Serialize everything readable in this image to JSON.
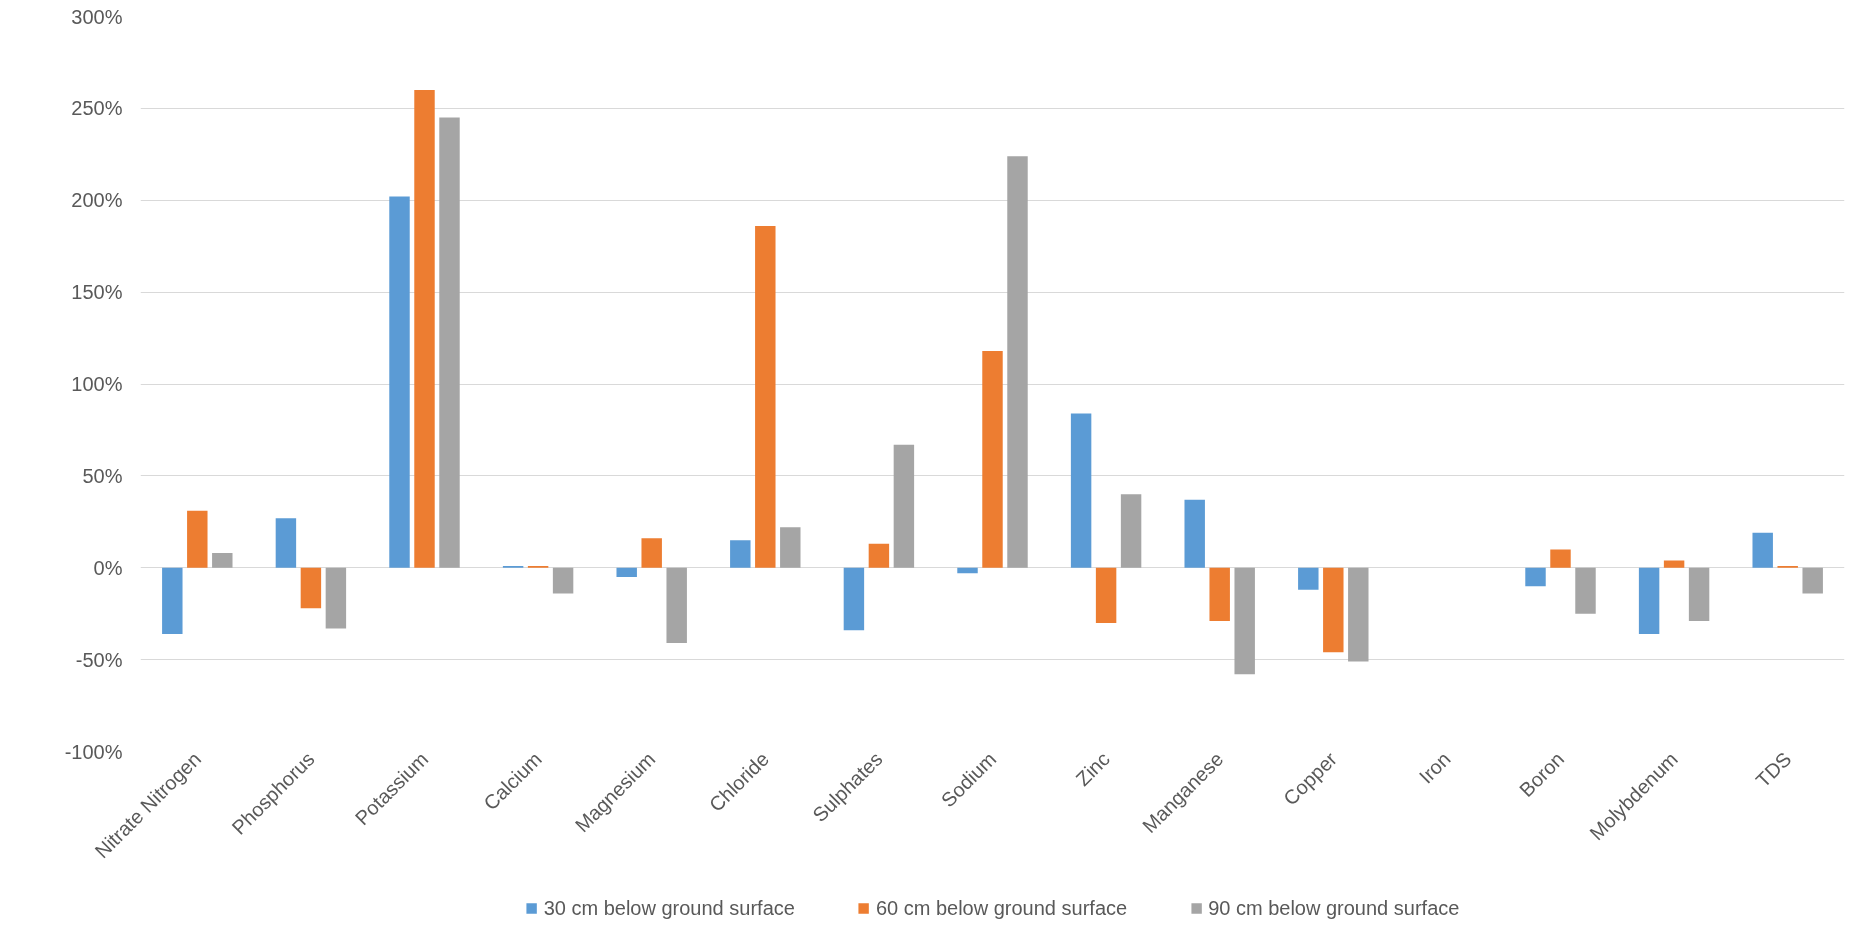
{
  "chart_data": {
    "type": "bar",
    "categories": [
      "Nitrate Nitrogen",
      "Phosphorus",
      "Potassium",
      "Calcium",
      "Magnesium",
      "Chloride",
      "Sulphates",
      "Sodium",
      "Zinc",
      "Manganese",
      "Copper",
      "Iron",
      "Boron",
      "Molybdenum",
      "TDS"
    ],
    "series": [
      {
        "name": "30 cm below ground surface",
        "color": "#5b9bd5",
        "values": [
          -36,
          27,
          202,
          1,
          -5,
          15,
          -34,
          -3,
          84,
          37,
          -12,
          null,
          -10,
          -36,
          19
        ]
      },
      {
        "name": "60 cm below ground surface",
        "color": "#ed7d31",
        "values": [
          31,
          -22,
          260,
          1,
          16,
          186,
          13,
          118,
          -30,
          -29,
          -46,
          null,
          10,
          4,
          1
        ]
      },
      {
        "name": "90 cm below ground surface",
        "color": "#a5a5a5",
        "values": [
          8,
          -33,
          245,
          -14,
          -41,
          22,
          67,
          224,
          40,
          -58,
          -51,
          null,
          -25,
          -29,
          -14
        ]
      }
    ],
    "ylim": [
      -100,
      300
    ],
    "yticks": [
      {
        "value": -100,
        "label": "-100%"
      },
      {
        "value": -50,
        "label": "-50%"
      },
      {
        "value": 0,
        "label": "0%"
      },
      {
        "value": 50,
        "label": "50%"
      },
      {
        "value": 100,
        "label": "100%"
      },
      {
        "value": 150,
        "label": "150%"
      },
      {
        "value": 200,
        "label": "200%"
      },
      {
        "value": 250,
        "label": "250%"
      },
      {
        "value": 300,
        "label": "300%"
      }
    ],
    "grid": "y",
    "legend": "bottom"
  }
}
